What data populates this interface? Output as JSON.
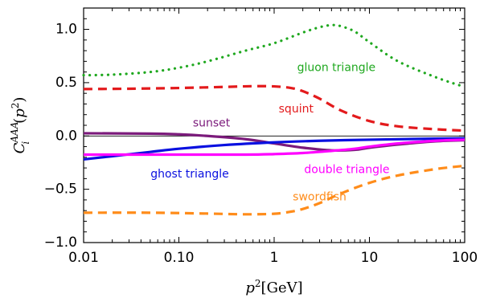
{
  "chart_data": {
    "type": "line",
    "xlabel": "p²[GeV]",
    "ylabel": "C_i^AAA(p²)",
    "xscale": "log",
    "xlim": [
      0.01,
      100
    ],
    "ylim": [
      -1.0,
      1.2
    ],
    "x_tick_labels": [
      {
        "value": 0.01,
        "label": "0.01"
      },
      {
        "value": 0.1,
        "label": "0.10"
      },
      {
        "value": 1,
        "label": "1"
      },
      {
        "value": 10,
        "label": "10"
      },
      {
        "value": 100,
        "label": "100"
      }
    ],
    "y_tick_labels": [
      {
        "value": 1.0,
        "label": "1.0"
      },
      {
        "value": 0.5,
        "label": "0.5"
      },
      {
        "value": 0.0,
        "label": "0.0"
      },
      {
        "value": -0.5,
        "label": "−0.5"
      },
      {
        "value": -1.0,
        "label": "−1.0"
      }
    ],
    "grid": false,
    "series": [
      {
        "name": "gluon triangle",
        "color": "#1fa81f",
        "style": "dotted",
        "x": [
          0.01,
          0.02,
          0.05,
          0.1,
          0.2,
          0.5,
          1,
          2,
          3,
          4,
          5,
          7,
          10,
          20,
          50,
          100
        ],
        "y": [
          0.57,
          0.575,
          0.6,
          0.64,
          0.7,
          0.8,
          0.87,
          0.97,
          1.02,
          1.04,
          1.03,
          0.98,
          0.88,
          0.7,
          0.55,
          0.46
        ]
      },
      {
        "name": "squint",
        "color": "#e31a1c",
        "style": "dashed",
        "x": [
          0.01,
          0.03,
          0.1,
          0.3,
          0.6,
          1,
          1.5,
          2,
          3,
          5,
          10,
          20,
          50,
          100
        ],
        "y": [
          0.44,
          0.443,
          0.45,
          0.46,
          0.467,
          0.465,
          0.45,
          0.42,
          0.35,
          0.24,
          0.14,
          0.09,
          0.063,
          0.05
        ]
      },
      {
        "name": "sunset",
        "color": "#7b1a7b",
        "style": "solid",
        "x": [
          0.01,
          0.05,
          0.1,
          0.2,
          0.5,
          1,
          2,
          4,
          7,
          10,
          20,
          50,
          100
        ],
        "y": [
          0.025,
          0.022,
          0.015,
          0.0,
          -0.03,
          -0.07,
          -0.11,
          -0.135,
          -0.13,
          -0.11,
          -0.08,
          -0.05,
          -0.04
        ]
      },
      {
        "name": "ghost triangle",
        "color": "#0a10e0",
        "style": "solid",
        "x": [
          0.01,
          0.02,
          0.05,
          0.1,
          0.3,
          1,
          3,
          10,
          30,
          100
        ],
        "y": [
          -0.22,
          -0.19,
          -0.15,
          -0.12,
          -0.085,
          -0.06,
          -0.045,
          -0.035,
          -0.028,
          -0.022
        ]
      },
      {
        "name": "double triangle",
        "color": "#ff00ff",
        "style": "solid",
        "x": [
          0.01,
          0.1,
          0.5,
          1,
          2,
          4,
          7,
          10,
          20,
          50,
          100
        ],
        "y": [
          -0.175,
          -0.175,
          -0.175,
          -0.17,
          -0.16,
          -0.14,
          -0.12,
          -0.1,
          -0.07,
          -0.045,
          -0.035
        ]
      },
      {
        "name": "swordfish",
        "color": "#ff8c1a",
        "style": "dashed",
        "x": [
          0.01,
          0.05,
          0.2,
          0.5,
          1,
          1.5,
          2,
          3,
          5,
          10,
          20,
          50,
          100
        ],
        "y": [
          -0.72,
          -0.72,
          -0.728,
          -0.735,
          -0.73,
          -0.71,
          -0.685,
          -0.63,
          -0.54,
          -0.44,
          -0.37,
          -0.31,
          -0.28
        ]
      }
    ],
    "annotations": [
      {
        "text": "gluon triangle",
        "series": "gluon triangle",
        "x": 4.5,
        "y": 0.64
      },
      {
        "text": "squint",
        "series": "squint",
        "x": 1.7,
        "y": 0.25
      },
      {
        "text": "sunset",
        "series": "sunset",
        "x": 0.22,
        "y": 0.12
      },
      {
        "text": "ghost triangle",
        "series": "ghost triangle",
        "x": 0.13,
        "y": -0.36
      },
      {
        "text": "double triangle",
        "series": "double triangle",
        "x": 5.8,
        "y": -0.32
      },
      {
        "text": "swordfish",
        "series": "swordfish",
        "x": 3.0,
        "y": -0.575
      }
    ]
  }
}
